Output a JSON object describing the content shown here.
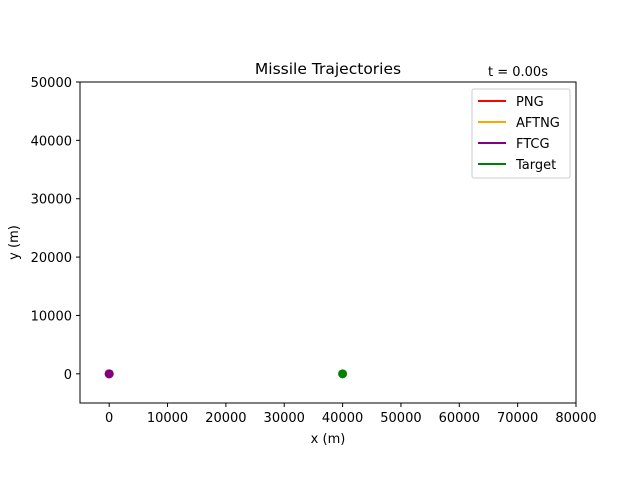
{
  "chart_data": {
    "type": "line",
    "title": "Missile Trajectories",
    "annotation": "t = 0.00s",
    "xlabel": "x (m)",
    "ylabel": "y (m)",
    "xlim": [
      -5000,
      80000
    ],
    "ylim": [
      -5000,
      50000
    ],
    "xticks": [
      0,
      10000,
      20000,
      30000,
      40000,
      50000,
      60000,
      70000,
      80000
    ],
    "yticks": [
      0,
      10000,
      20000,
      30000,
      40000,
      50000
    ],
    "grid": false,
    "legend_position": "upper right",
    "series": [
      {
        "name": "PNG",
        "color": "#ff0000",
        "x": [
          0
        ],
        "y": [
          0
        ]
      },
      {
        "name": "AFTNG",
        "color": "#ffa500",
        "x": [
          0
        ],
        "y": [
          0
        ]
      },
      {
        "name": "FTCG",
        "color": "#800080",
        "x": [
          0
        ],
        "y": [
          0
        ]
      },
      {
        "name": "Target",
        "color": "#008000",
        "x": [
          40000
        ],
        "y": [
          0
        ]
      }
    ]
  }
}
